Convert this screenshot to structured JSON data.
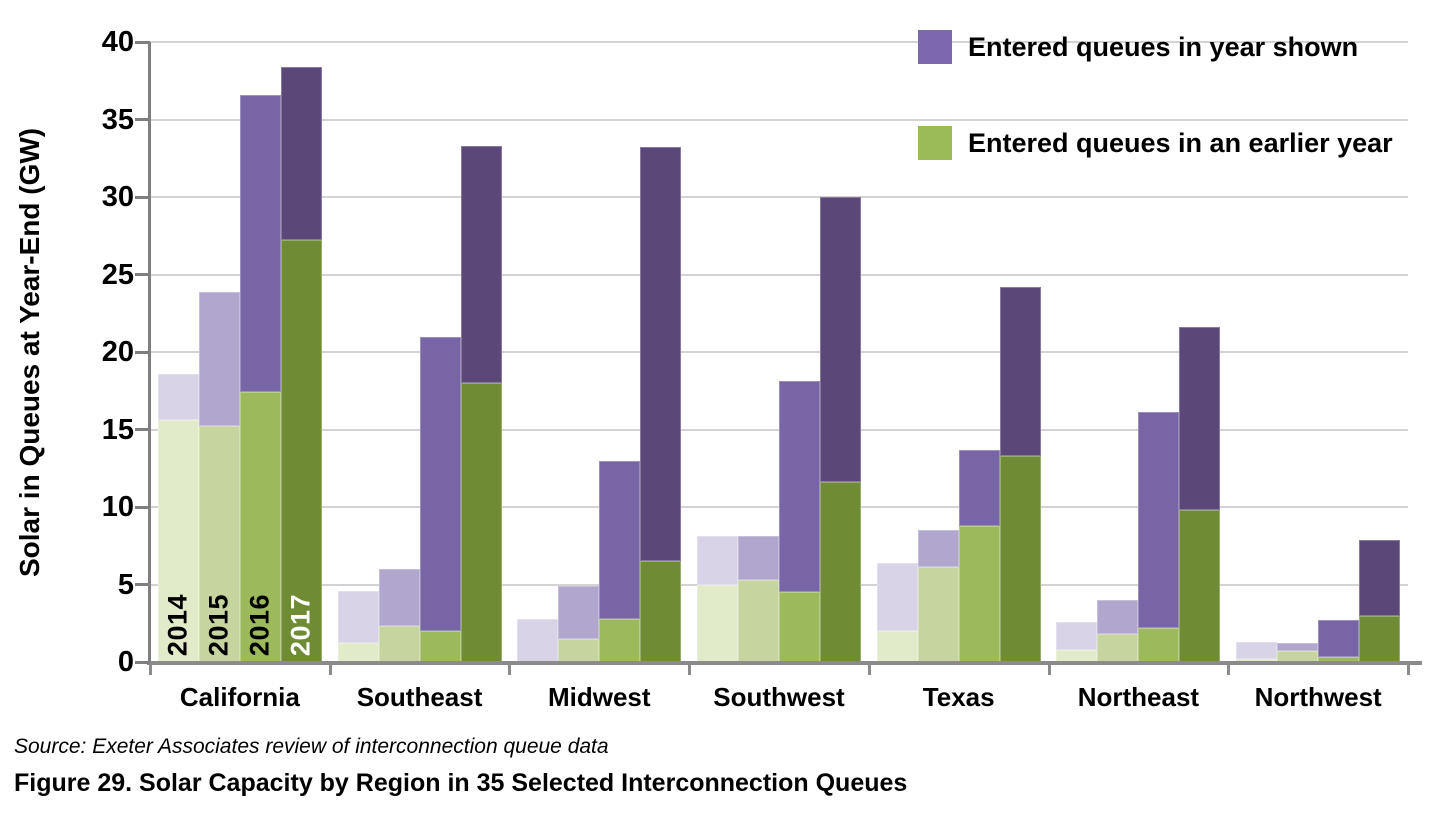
{
  "figure": {
    "source_note": "Source:  Exeter Associates review of interconnection queue data",
    "caption": "Figure 29. Solar Capacity by Region in 35 Selected Interconnection Queues"
  },
  "chart_data": {
    "type": "bar",
    "stacked": true,
    "title": "",
    "xlabel": "",
    "ylabel": "Solar in Queues at Year-End (GW)",
    "unit": "GW",
    "ylim": [
      0,
      40
    ],
    "yticks": [
      0,
      5,
      10,
      15,
      20,
      25,
      30,
      35,
      40
    ],
    "grid": "horizontal",
    "legend_position": "top-right",
    "years": [
      "2014",
      "2015",
      "2016",
      "2017"
    ],
    "legend": [
      {
        "key": "in_year",
        "label": "Entered queues in year shown",
        "color": "#7C68AC"
      },
      {
        "key": "earlier",
        "label": "Entered queues in an earlier year",
        "color": "#9BBB59"
      }
    ],
    "colors": {
      "in_year": {
        "2014": "#D9D3E8",
        "2015": "#B1A6CE",
        "2016": "#7765A6",
        "2017": "#5B4778"
      },
      "earlier": {
        "2014": "#E1EAC9",
        "2015": "#C6D5A0",
        "2016": "#9CBA5C",
        "2017": "#6F8C35"
      }
    },
    "year_label_colors": {
      "2014": "#000000",
      "2015": "#000000",
      "2016": "#000000",
      "2017": "#FFFFFF"
    },
    "regions": [
      {
        "name": "California",
        "bars": [
          {
            "year": "2014",
            "earlier": 15.6,
            "in_year": 3.0
          },
          {
            "year": "2015",
            "earlier": 15.2,
            "in_year": 8.7
          },
          {
            "year": "2016",
            "earlier": 17.4,
            "in_year": 19.2
          },
          {
            "year": "2017",
            "earlier": 27.2,
            "in_year": 11.2
          }
        ]
      },
      {
        "name": "Southeast",
        "bars": [
          {
            "year": "2014",
            "earlier": 1.2,
            "in_year": 3.4
          },
          {
            "year": "2015",
            "earlier": 2.3,
            "in_year": 3.7
          },
          {
            "year": "2016",
            "earlier": 2.0,
            "in_year": 19.0
          },
          {
            "year": "2017",
            "earlier": 18.0,
            "in_year": 15.3
          }
        ]
      },
      {
        "name": "Midwest",
        "bars": [
          {
            "year": "2014",
            "earlier": 0.0,
            "in_year": 2.8
          },
          {
            "year": "2015",
            "earlier": 1.5,
            "in_year": 3.4
          },
          {
            "year": "2016",
            "earlier": 2.8,
            "in_year": 10.2
          },
          {
            "year": "2017",
            "earlier": 6.5,
            "in_year": 26.7
          }
        ]
      },
      {
        "name": "Southwest",
        "bars": [
          {
            "year": "2014",
            "earlier": 5.0,
            "in_year": 3.1
          },
          {
            "year": "2015",
            "earlier": 5.3,
            "in_year": 2.8
          },
          {
            "year": "2016",
            "earlier": 4.5,
            "in_year": 13.6
          },
          {
            "year": "2017",
            "earlier": 11.6,
            "in_year": 18.4
          }
        ]
      },
      {
        "name": "Texas",
        "bars": [
          {
            "year": "2014",
            "earlier": 2.0,
            "in_year": 4.4
          },
          {
            "year": "2015",
            "earlier": 6.1,
            "in_year": 2.4
          },
          {
            "year": "2016",
            "earlier": 8.8,
            "in_year": 4.9
          },
          {
            "year": "2017",
            "earlier": 13.3,
            "in_year": 10.9
          }
        ]
      },
      {
        "name": "Northeast",
        "bars": [
          {
            "year": "2014",
            "earlier": 0.8,
            "in_year": 1.8
          },
          {
            "year": "2015",
            "earlier": 1.8,
            "in_year": 2.2
          },
          {
            "year": "2016",
            "earlier": 2.2,
            "in_year": 13.9
          },
          {
            "year": "2017",
            "earlier": 9.8,
            "in_year": 11.8
          }
        ]
      },
      {
        "name": "Northwest",
        "bars": [
          {
            "year": "2014",
            "earlier": 0.2,
            "in_year": 1.1
          },
          {
            "year": "2015",
            "earlier": 0.7,
            "in_year": 0.5
          },
          {
            "year": "2016",
            "earlier": 0.3,
            "in_year": 2.4
          },
          {
            "year": "2017",
            "earlier": 3.0,
            "in_year": 4.9
          }
        ]
      }
    ]
  }
}
